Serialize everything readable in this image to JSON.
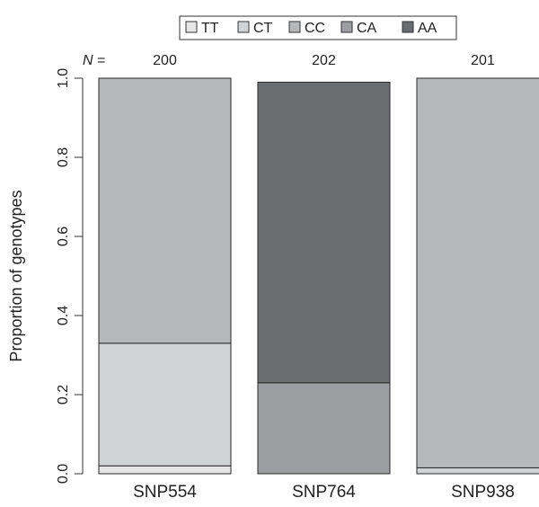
{
  "chart_data": {
    "type": "bar",
    "stacked": true,
    "title": "",
    "xlabel": "",
    "ylabel": "Proportion of genotypes",
    "ylim": [
      0,
      1
    ],
    "yticks": [
      "0.0",
      "0.2",
      "0.4",
      "0.6",
      "0.8",
      "1.0"
    ],
    "n_prefix": "N =",
    "categories": [
      "SNP554",
      "SNP764",
      "SNP938"
    ],
    "n_values": [
      "200",
      "202",
      "201"
    ],
    "legend": {
      "placement": "top-center",
      "entries": [
        "TT",
        "CT",
        "CC",
        "CA",
        "AA"
      ]
    },
    "series": [
      {
        "name": "TT",
        "color": "#e6e6e6",
        "values": [
          0.02,
          0,
          0
        ]
      },
      {
        "name": "CT",
        "color": "#d2d3d5",
        "values": [
          0.31,
          0,
          0.015
        ]
      },
      {
        "name": "CC",
        "color": "#b7b8ba",
        "values": [
          0.67,
          0,
          0.985
        ]
      },
      {
        "name": "CA",
        "color": "#9d9ea1",
        "values": [
          0,
          0.23,
          0
        ]
      },
      {
        "name": "AA",
        "color": "#6b6c6f",
        "values": [
          0,
          0.76,
          0
        ]
      }
    ],
    "grid": false
  }
}
